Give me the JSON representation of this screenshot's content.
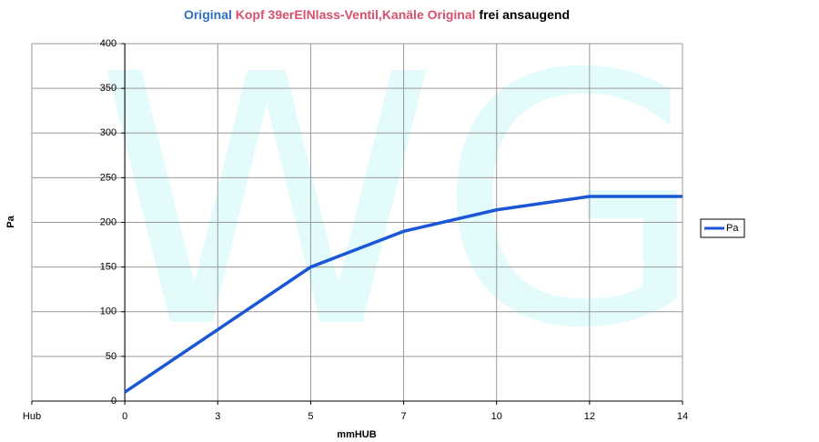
{
  "chart_data": {
    "type": "line",
    "title_parts": [
      {
        "text": "Original",
        "color": "#2f6fc4"
      },
      {
        "text": "Kopf 39erElNlass-Ventil,Kanäle Original",
        "color": "#d9506f"
      },
      {
        "text": "frei ansaugend",
        "color": "#000000"
      }
    ],
    "watermark": "WG",
    "x_label": "mmHUB",
    "y_label": "Pa",
    "categories": [
      "Hub",
      "0",
      "3",
      "5",
      "7",
      "10",
      "12",
      "14"
    ],
    "series": [
      {
        "name": "Pa",
        "color": "#1a56d6",
        "values": [
          null,
          10,
          80,
          150,
          190,
          214,
          229,
          229
        ]
      }
    ],
    "ylim": [
      0,
      400
    ],
    "yticks": [
      0,
      50,
      100,
      150,
      200,
      250,
      300,
      350,
      400
    ],
    "grid": true,
    "legend": "right"
  }
}
